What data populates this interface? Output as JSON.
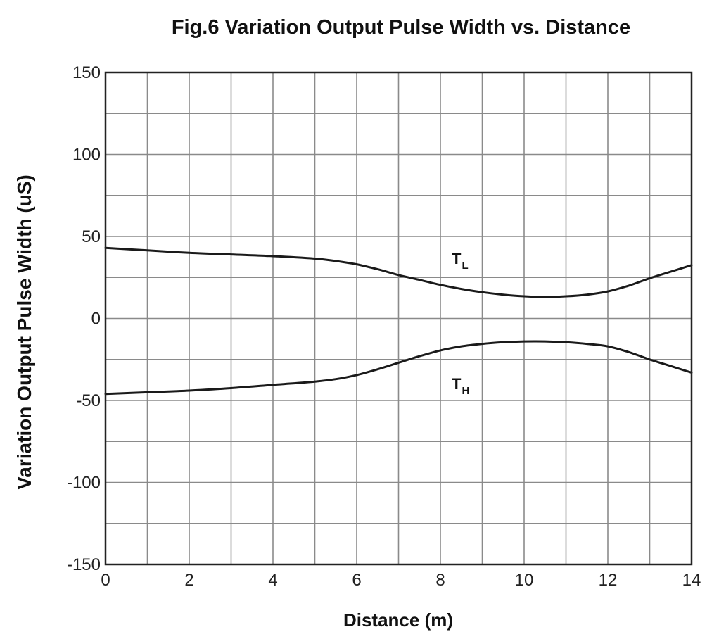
{
  "chart_data": {
    "type": "line",
    "title": "Fig.6 Variation Output Pulse Width vs. Distance",
    "xlabel": "Distance (m)",
    "ylabel": "Variation Output  Pulse Width (uS)",
    "xlim": [
      0,
      14
    ],
    "ylim": [
      -150,
      150
    ],
    "x_ticks": [
      0,
      2,
      4,
      6,
      8,
      10,
      12,
      14
    ],
    "y_ticks": [
      150,
      100,
      50,
      0,
      -50,
      -100,
      -150
    ],
    "grid": true,
    "x_grid_step": 1,
    "y_grid_step": 25,
    "series": [
      {
        "name": "T",
        "name_sub": "L",
        "x": [
          0,
          1,
          2,
          3,
          4,
          5,
          5.5,
          6,
          6.5,
          7,
          7.5,
          8,
          8.5,
          9,
          9.5,
          10,
          10.5,
          11,
          11.5,
          12,
          12.5,
          13,
          13.5,
          14
        ],
        "values": [
          43,
          41.5,
          40,
          39,
          38,
          36.5,
          35,
          33,
          30,
          26.5,
          23.5,
          20.5,
          18,
          16,
          14.5,
          13.5,
          13,
          13.5,
          14.5,
          16.5,
          20,
          24.5,
          28.5,
          32.5
        ]
      },
      {
        "name": "T",
        "name_sub": "H",
        "x": [
          0,
          1,
          2,
          3,
          4,
          5,
          5.5,
          6,
          6.5,
          7,
          7.5,
          8,
          8.5,
          9,
          9.5,
          10,
          10.5,
          11,
          11.5,
          12,
          12.5,
          13,
          13.5,
          14
        ],
        "values": [
          -46,
          -45,
          -44,
          -42.5,
          -40.5,
          -38.5,
          -37,
          -34.5,
          -31,
          -27,
          -23,
          -19.5,
          -17,
          -15.5,
          -14.5,
          -14,
          -14,
          -14.5,
          -15.5,
          -17,
          -20.5,
          -25,
          -29,
          -33
        ]
      }
    ]
  }
}
